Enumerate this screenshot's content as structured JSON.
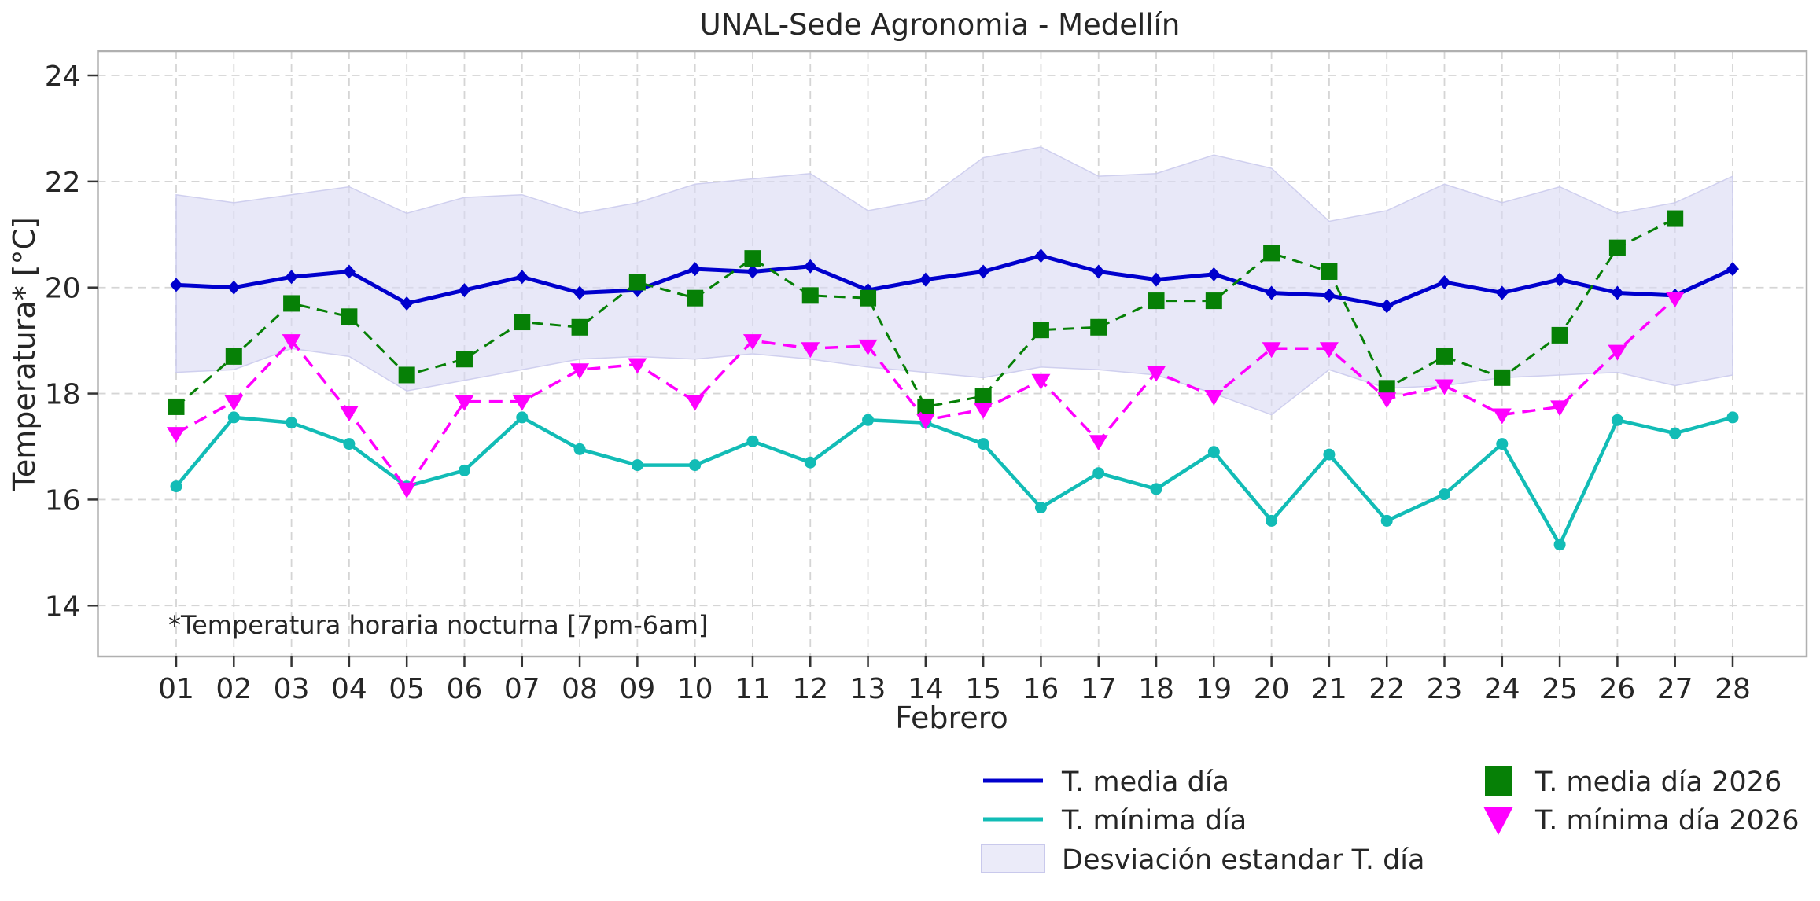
{
  "chart_data": {
    "type": "line",
    "title": "UNAL-Sede Agronomia - Medellín",
    "xlabel": "Febrero",
    "ylabel": "Temperatura* [°C]",
    "annotation": "*Temperatura horaria nocturna [7pm-6am]",
    "x_tick_labels": [
      "01",
      "02",
      "03",
      "04",
      "05",
      "06",
      "07",
      "08",
      "09",
      "10",
      "11",
      "12",
      "13",
      "14",
      "15",
      "16",
      "17",
      "18",
      "19",
      "20",
      "21",
      "22",
      "23",
      "24",
      "25",
      "26",
      "27",
      "28"
    ],
    "y_ticks": [
      14,
      16,
      18,
      20,
      22,
      24
    ],
    "ylim": [
      13.04,
      24.46
    ],
    "grid": true,
    "legend_position": "bottom-center-two-columns",
    "colors": {
      "t_media": "#0000cd",
      "t_minima": "#12bcb6",
      "t_media_2026": "#068006",
      "t_minima_2026": "#ff00ff",
      "band_fill": "#dadaf4",
      "gridline": "#d5d5d5",
      "spine": "#b0b0b0",
      "text": "#262626"
    },
    "series": [
      {
        "name": "T. media día",
        "color": "#0000cd",
        "style": "solid",
        "marker": "diamond",
        "values": [
          20.05,
          20.0,
          20.2,
          20.3,
          19.7,
          19.95,
          20.2,
          19.9,
          19.95,
          20.35,
          20.3,
          20.4,
          19.95,
          20.15,
          20.3,
          20.6,
          20.3,
          20.15,
          20.25,
          19.9,
          19.85,
          19.65,
          20.1,
          19.9,
          20.15,
          19.9,
          19.85,
          20.35
        ]
      },
      {
        "name": "T. mínima día",
        "color": "#12bcb6",
        "style": "solid",
        "marker": "circle",
        "values": [
          16.25,
          17.55,
          17.45,
          17.05,
          16.25,
          16.55,
          17.55,
          16.95,
          16.65,
          16.65,
          17.1,
          16.7,
          17.5,
          17.45,
          17.05,
          15.85,
          16.5,
          16.2,
          16.9,
          15.6,
          16.85,
          15.6,
          16.1,
          17.05,
          15.15,
          17.5,
          17.25,
          17.55
        ]
      },
      {
        "name": "T. media día 2026",
        "color": "#068006",
        "style": "dashed",
        "marker": "square",
        "values": [
          17.75,
          18.7,
          19.7,
          19.45,
          18.35,
          18.65,
          19.35,
          19.25,
          20.1,
          19.8,
          20.55,
          19.85,
          19.8,
          17.75,
          17.95,
          19.2,
          19.25,
          19.75,
          19.75,
          20.65,
          20.3,
          18.1,
          18.7,
          18.3,
          19.1,
          20.75,
          21.3
        ]
      },
      {
        "name": "T. mínima día 2026",
        "color": "#ff00ff",
        "style": "dashed",
        "marker": "triangle-down",
        "values": [
          17.25,
          17.85,
          19.0,
          17.65,
          16.2,
          17.85,
          17.85,
          18.45,
          18.55,
          17.85,
          19.0,
          18.85,
          18.9,
          17.5,
          17.7,
          18.25,
          17.1,
          18.4,
          17.95,
          18.85,
          18.85,
          17.9,
          18.15,
          17.6,
          17.75,
          18.8,
          19.8
        ]
      }
    ],
    "band": {
      "name": "Desviación estandar T. día",
      "color": "#dadaf4",
      "upper": [
        21.75,
        21.6,
        21.75,
        21.9,
        21.4,
        21.7,
        21.75,
        21.4,
        21.6,
        21.95,
        22.05,
        22.15,
        21.45,
        21.65,
        22.45,
        22.65,
        22.1,
        22.15,
        22.5,
        22.25,
        21.25,
        21.45,
        21.95,
        21.6,
        21.9,
        21.4,
        21.6,
        22.1
      ],
      "lower": [
        18.4,
        18.45,
        18.85,
        18.7,
        18.05,
        18.25,
        18.45,
        18.65,
        18.7,
        18.65,
        18.75,
        18.65,
        18.5,
        18.4,
        18.3,
        18.5,
        18.45,
        18.35,
        18.0,
        17.6,
        18.45,
        18.1,
        18.15,
        18.3,
        18.35,
        18.4,
        18.15,
        18.35
      ]
    },
    "legend": {
      "items": [
        {
          "label": "T. media día",
          "swatch": "line"
        },
        {
          "label": "T. mínima día",
          "swatch": "line"
        },
        {
          "label": "Desviación estandar T. día",
          "swatch": "patch"
        },
        {
          "label": "T. media día 2026",
          "swatch": "square"
        },
        {
          "label": "T. mínima día 2026",
          "swatch": "triangle"
        }
      ]
    }
  }
}
